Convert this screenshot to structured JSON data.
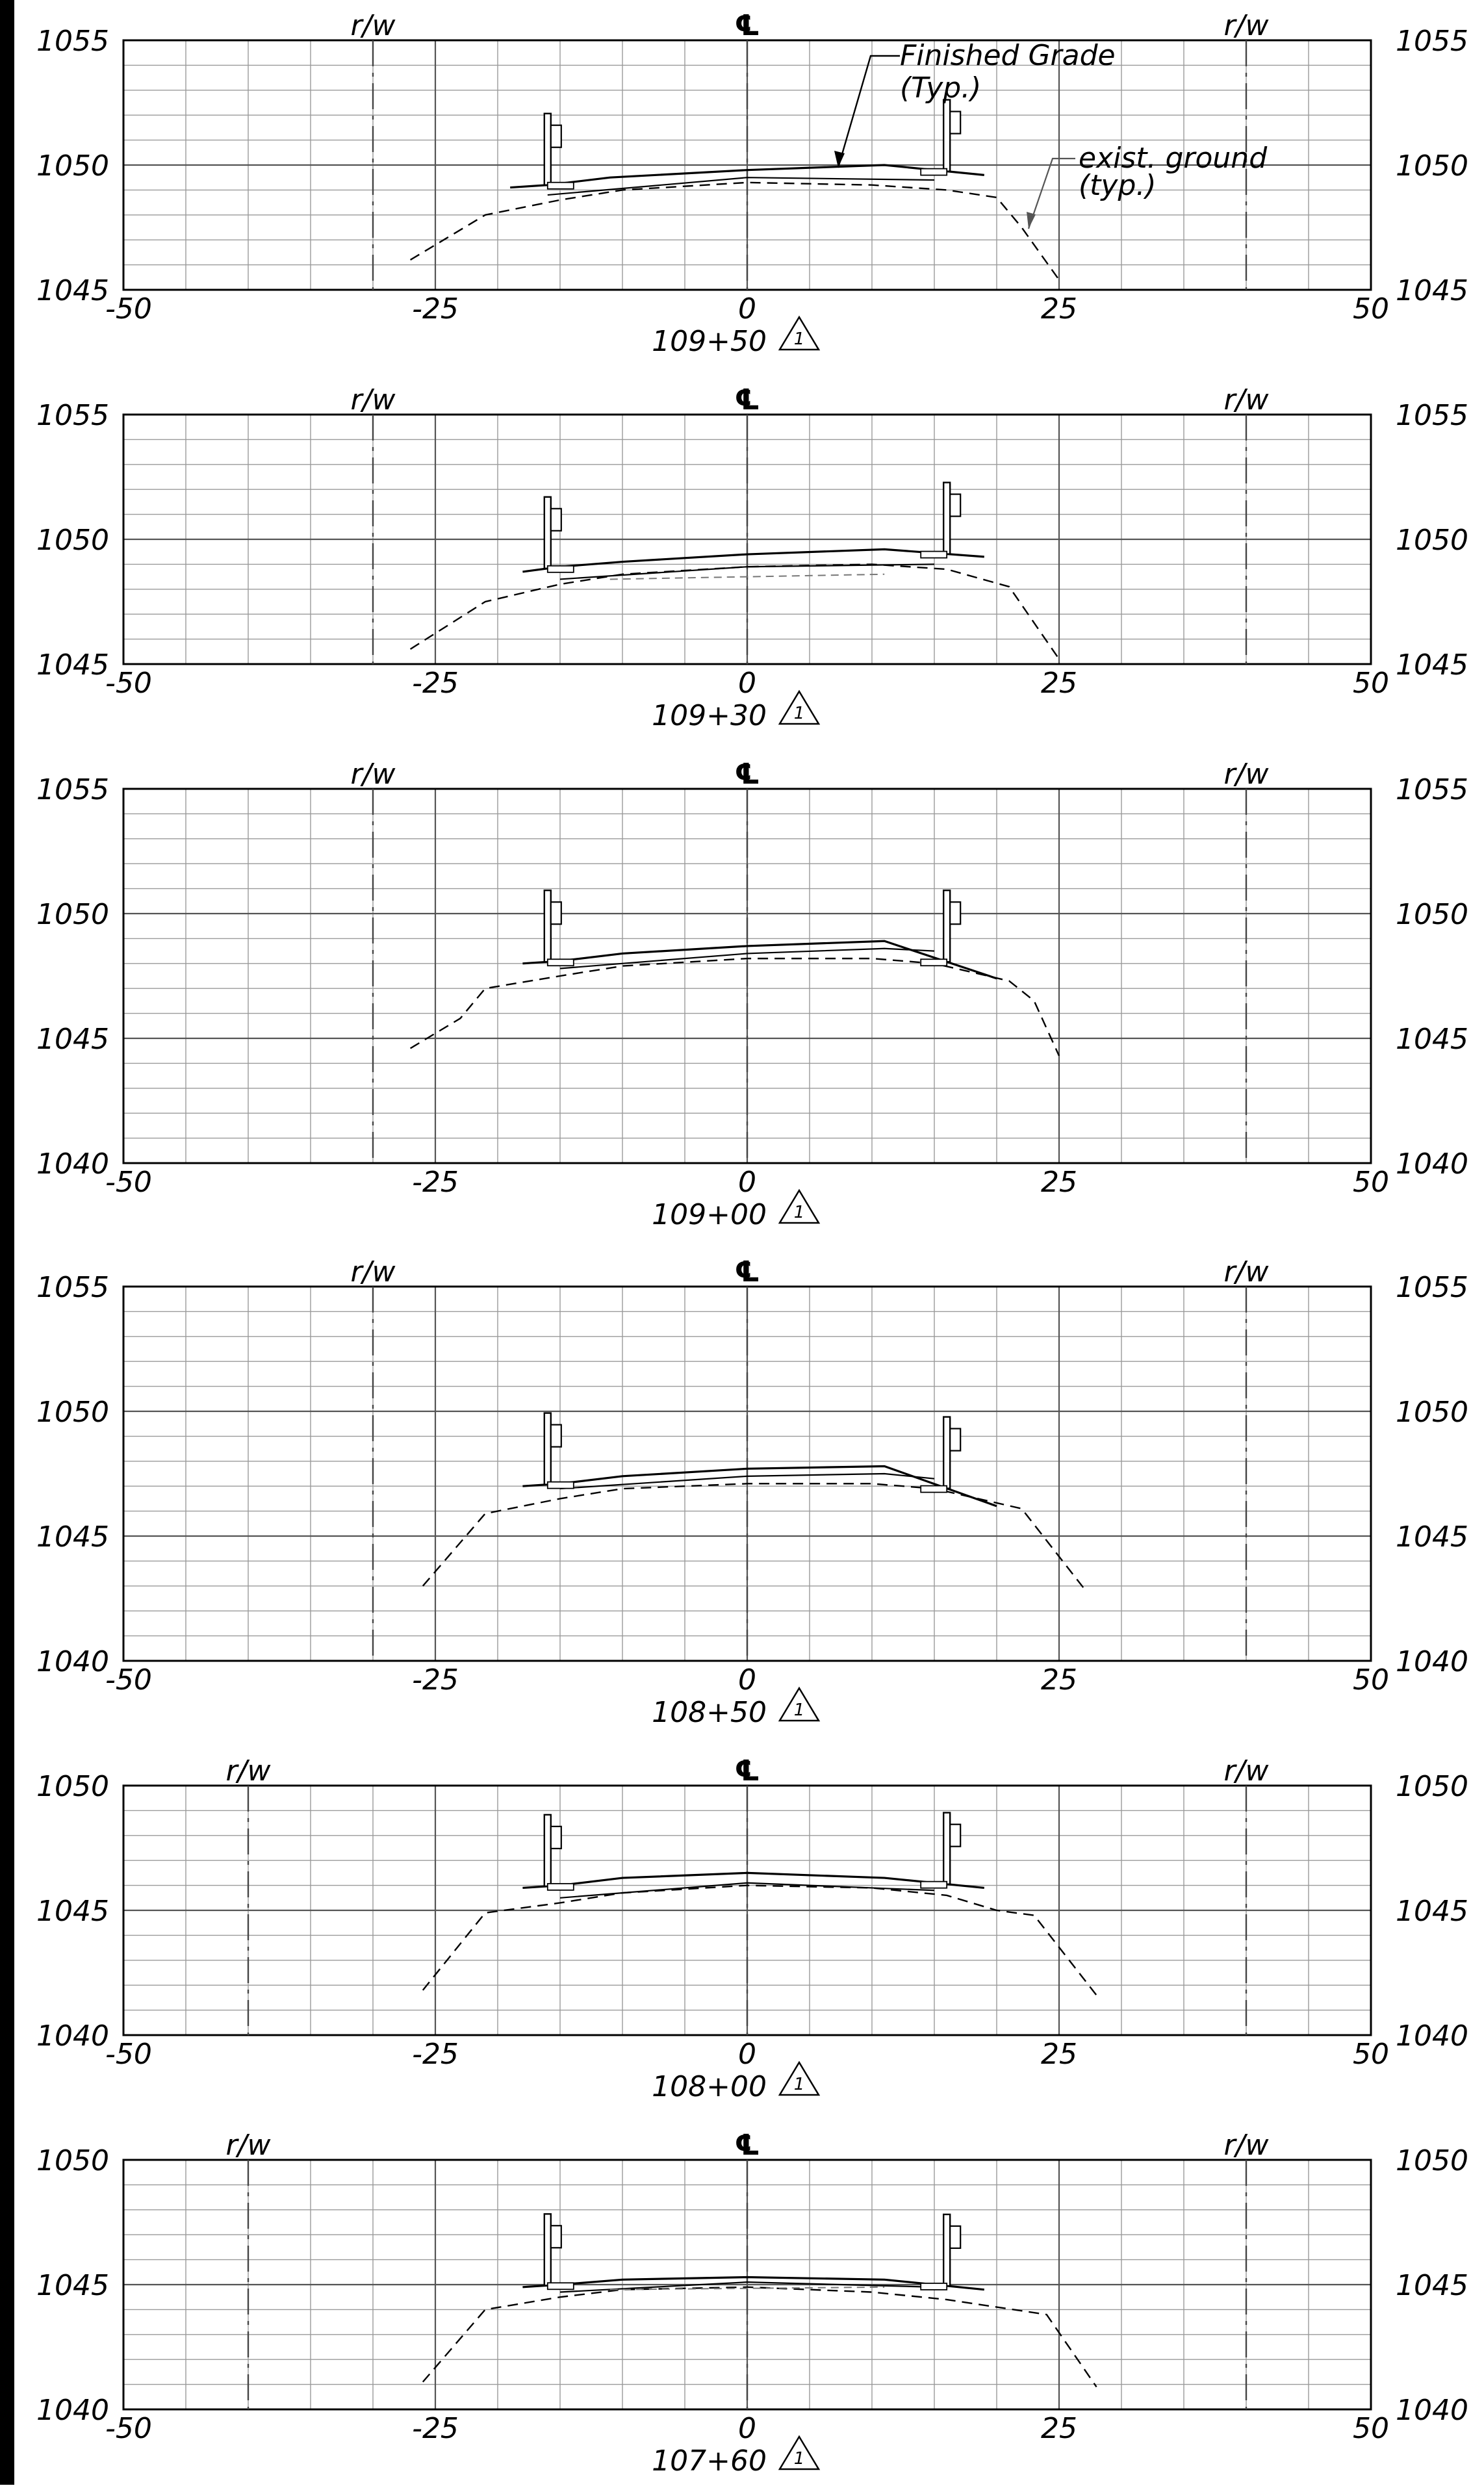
{
  "sheet": {
    "rw_label": "r/w",
    "centerline_symbol": "℄",
    "revision_mark": "1",
    "annotations": {
      "finished_grade": [
        "Finished Grade",
        "(Typ.)"
      ],
      "exist_ground": [
        "exist. ground",
        "(typ.)"
      ]
    }
  },
  "chart_data": [
    {
      "type": "line",
      "station": "109+50",
      "x_ticks": [
        -50,
        -25,
        0,
        25,
        50
      ],
      "x_tick_labels": [
        "-50",
        "-25",
        "0",
        "25",
        "50"
      ],
      "ylim": [
        1045,
        1055
      ],
      "y_labels": [
        "1045",
        "1050",
        "1055"
      ],
      "rw_offsets": [
        -30,
        40
      ],
      "grid": true,
      "series": [
        {
          "role": "finished_grade",
          "x": [
            -19,
            -16,
            -11,
            0,
            11,
            19
          ],
          "y": [
            1049.1,
            1049.2,
            1049.5,
            1049.8,
            1050.0,
            1049.6
          ]
        },
        {
          "role": "subgrade",
          "x": [
            -16,
            0,
            15
          ],
          "y": [
            1048.8,
            1049.5,
            1049.4
          ]
        },
        {
          "role": "existing_ground",
          "x": [
            -27,
            -21,
            -15,
            -10,
            0,
            10,
            16,
            20,
            22,
            25
          ],
          "y": [
            1046.2,
            1048.0,
            1048.6,
            1049.0,
            1049.3,
            1049.2,
            1049.0,
            1048.7,
            1047.5,
            1045.4
          ]
        }
      ]
    },
    {
      "type": "line",
      "station": "109+30",
      "x_ticks": [
        -50,
        -25,
        0,
        25,
        50
      ],
      "x_tick_labels": [
        "-50",
        "-25",
        "0",
        "25",
        "50"
      ],
      "ylim": [
        1045,
        1055
      ],
      "y_labels": [
        "1045",
        "1050",
        "1055"
      ],
      "rw_offsets": [
        -30,
        40
      ],
      "grid": true,
      "series": [
        {
          "role": "finished_grade",
          "x": [
            -18,
            -15,
            -10,
            0,
            11,
            19
          ],
          "y": [
            1048.7,
            1048.9,
            1049.1,
            1049.4,
            1049.6,
            1049.3
          ]
        },
        {
          "role": "subgrade",
          "x": [
            -15,
            0,
            15
          ],
          "y": [
            1048.4,
            1048.9,
            1049.0
          ]
        },
        {
          "role": "existing_ground",
          "x": [
            -27,
            -21,
            -15,
            -10,
            0,
            10,
            16,
            21,
            25
          ],
          "y": [
            1045.6,
            1047.5,
            1048.2,
            1048.6,
            1048.9,
            1049.0,
            1048.8,
            1048.1,
            1045.2
          ]
        },
        {
          "role": "existing_pavement",
          "x": [
            -11,
            11
          ],
          "y": [
            1048.4,
            1048.6
          ]
        }
      ]
    },
    {
      "type": "line",
      "station": "109+00",
      "x_ticks": [
        -50,
        -25,
        0,
        25,
        50
      ],
      "x_tick_labels": [
        "-50",
        "-25",
        "0",
        "25",
        "50"
      ],
      "ylim": [
        1040,
        1055
      ],
      "y_labels": [
        "1040",
        "1045",
        "1050",
        "1055"
      ],
      "rw_offsets": [
        -30,
        40
      ],
      "grid": true,
      "series": [
        {
          "role": "finished_grade",
          "x": [
            -18,
            -15,
            -10,
            0,
            11,
            20
          ],
          "y": [
            1048.0,
            1048.1,
            1048.4,
            1048.7,
            1048.9,
            1047.4
          ]
        },
        {
          "role": "subgrade",
          "x": [
            -15,
            0,
            11,
            15
          ],
          "y": [
            1047.8,
            1048.4,
            1048.6,
            1048.5
          ]
        },
        {
          "role": "existing_ground",
          "x": [
            -27,
            -23,
            -21,
            -15,
            -10,
            0,
            10,
            15,
            21,
            23,
            25
          ],
          "y": [
            1044.6,
            1045.8,
            1047.0,
            1047.5,
            1047.9,
            1048.2,
            1048.2,
            1048.0,
            1047.3,
            1046.5,
            1044.3
          ]
        }
      ]
    },
    {
      "type": "line",
      "station": "108+50",
      "x_ticks": [
        -50,
        -25,
        0,
        25,
        50
      ],
      "x_tick_labels": [
        "-50",
        "-25",
        "0",
        "25",
        "50"
      ],
      "ylim": [
        1040,
        1055
      ],
      "y_labels": [
        "1040",
        "1045",
        "1050",
        "1055"
      ],
      "rw_offsets": [
        -30,
        40
      ],
      "grid": true,
      "series": [
        {
          "role": "finished_grade",
          "x": [
            -18,
            -15,
            -10,
            0,
            11,
            20
          ],
          "y": [
            1047.0,
            1047.1,
            1047.4,
            1047.7,
            1047.8,
            1046.2
          ]
        },
        {
          "role": "subgrade",
          "x": [
            -15,
            0,
            11,
            15
          ],
          "y": [
            1046.9,
            1047.4,
            1047.5,
            1047.3
          ]
        },
        {
          "role": "existing_ground",
          "x": [
            -26,
            -21,
            -15,
            -10,
            0,
            10,
            15,
            22,
            27
          ],
          "y": [
            1043.0,
            1045.9,
            1046.5,
            1046.9,
            1047.1,
            1047.1,
            1046.9,
            1046.1,
            1042.9
          ]
        }
      ]
    },
    {
      "type": "line",
      "station": "108+00",
      "x_ticks": [
        -50,
        -25,
        0,
        25,
        50
      ],
      "x_tick_labels": [
        "-50",
        "-25",
        "0",
        "25",
        "50"
      ],
      "ylim": [
        1040,
        1050
      ],
      "y_labels": [
        "1040",
        "1045",
        "1050"
      ],
      "rw_offsets": [
        -40,
        40
      ],
      "grid": true,
      "series": [
        {
          "role": "finished_grade",
          "x": [
            -18,
            -15,
            -10,
            0,
            11,
            19
          ],
          "y": [
            1045.9,
            1046.0,
            1046.3,
            1046.5,
            1046.3,
            1045.9
          ]
        },
        {
          "role": "subgrade",
          "x": [
            -15,
            0,
            15
          ],
          "y": [
            1045.5,
            1046.1,
            1045.8
          ]
        },
        {
          "role": "existing_ground",
          "x": [
            -26,
            -21,
            -15,
            -10,
            0,
            10,
            16,
            20,
            23,
            28
          ],
          "y": [
            1041.8,
            1044.9,
            1045.3,
            1045.7,
            1046.0,
            1045.9,
            1045.6,
            1045.0,
            1044.8,
            1041.6
          ]
        }
      ]
    },
    {
      "type": "line",
      "station": "107+60",
      "x_ticks": [
        -50,
        -25,
        0,
        25,
        50
      ],
      "x_tick_labels": [
        "-50",
        "-25",
        "0",
        "25",
        "50"
      ],
      "ylim": [
        1040,
        1050
      ],
      "y_labels": [
        "1040",
        "1045",
        "1050"
      ],
      "rw_offsets": [
        -40,
        40
      ],
      "grid": true,
      "series": [
        {
          "role": "finished_grade",
          "x": [
            -18,
            -15,
            -10,
            0,
            11,
            19
          ],
          "y": [
            1044.9,
            1045.0,
            1045.2,
            1045.3,
            1045.2,
            1044.8
          ]
        },
        {
          "role": "subgrade",
          "x": [
            -15,
            0,
            15
          ],
          "y": [
            1044.7,
            1045.1,
            1044.9
          ]
        },
        {
          "role": "existing_ground",
          "x": [
            -26,
            -21,
            -15,
            -10,
            0,
            10,
            16,
            20,
            24,
            28
          ],
          "y": [
            1041.1,
            1044.0,
            1044.5,
            1044.8,
            1044.9,
            1044.7,
            1044.4,
            1044.1,
            1043.8,
            1040.9
          ]
        },
        {
          "role": "existing_pavement",
          "x": [
            -11,
            11
          ],
          "y": [
            1044.8,
            1044.9
          ]
        }
      ]
    }
  ]
}
